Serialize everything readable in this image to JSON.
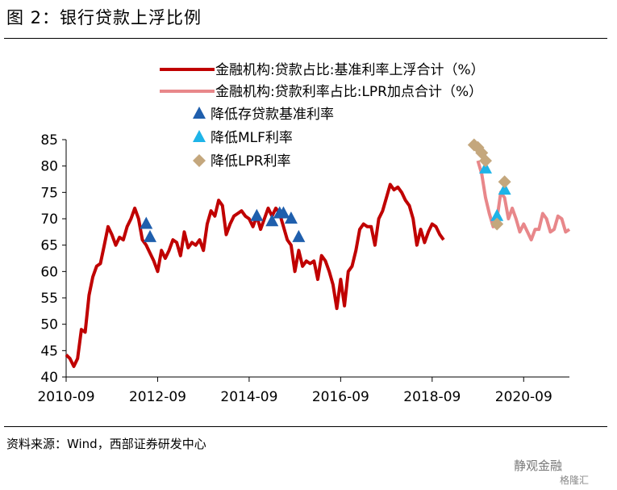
{
  "title": "图 2：银行贷款上浮比例",
  "source": "资料来源：Wind，西部证券研发中心",
  "watermark": "静观金融",
  "watermark_sub": "格隆汇",
  "colors": {
    "series1": "#C00000",
    "series2": "#E8878A",
    "tri_dark": "#1F5FAD",
    "tri_light": "#1EB4E8",
    "diamond": "#C4A77D"
  },
  "chart_data": {
    "type": "line",
    "ylim": [
      40,
      85
    ],
    "yticks": [
      40,
      45,
      50,
      55,
      60,
      65,
      70,
      75,
      80,
      85
    ],
    "xtick_labels": [
      "2010-09",
      "2012-09",
      "2014-09",
      "2016-09",
      "2018-09",
      "2020-09"
    ],
    "xrange": [
      "2010-09",
      "2021-09"
    ],
    "legend": [
      "金融机构:贷款占比:基准利率上浮合计（%）",
      "金融机构:贷款利率占比:LPR加点合计（%）",
      "降低存贷款基准利率",
      "降低MLF利率",
      "降低LPR利率"
    ],
    "series": [
      {
        "name": "金融机构:贷款占比:基准利率上浮合计（%）",
        "x": [
          "2010-09",
          "2010-10",
          "2010-11",
          "2010-12",
          "2011-01",
          "2011-02",
          "2011-03",
          "2011-04",
          "2011-05",
          "2011-06",
          "2011-07",
          "2011-08",
          "2011-09",
          "2011-10",
          "2011-11",
          "2011-12",
          "2012-01",
          "2012-02",
          "2012-03",
          "2012-04",
          "2012-05",
          "2012-06",
          "2012-07",
          "2012-08",
          "2012-09",
          "2012-10",
          "2012-11",
          "2012-12",
          "2013-01",
          "2013-02",
          "2013-03",
          "2013-04",
          "2013-05",
          "2013-06",
          "2013-07",
          "2013-08",
          "2013-09",
          "2013-10",
          "2013-11",
          "2013-12",
          "2014-01",
          "2014-02",
          "2014-03",
          "2014-04",
          "2014-05",
          "2014-06",
          "2014-07",
          "2014-08",
          "2014-09",
          "2014-10",
          "2014-11",
          "2014-12",
          "2015-01",
          "2015-02",
          "2015-03",
          "2015-04",
          "2015-05",
          "2015-06",
          "2015-07",
          "2015-08",
          "2015-09",
          "2015-10",
          "2015-11",
          "2015-12",
          "2016-01",
          "2016-02",
          "2016-03",
          "2016-04",
          "2016-05",
          "2016-06",
          "2016-07",
          "2016-08",
          "2016-09",
          "2016-10",
          "2016-11",
          "2016-12",
          "2017-01",
          "2017-02",
          "2017-03",
          "2017-04",
          "2017-05",
          "2017-06",
          "2017-07",
          "2017-08",
          "2017-09",
          "2017-10",
          "2017-11",
          "2017-12",
          "2018-01",
          "2018-02",
          "2018-03",
          "2018-04",
          "2018-05",
          "2018-06",
          "2018-07",
          "2018-08",
          "2018-09",
          "2018-10",
          "2018-11",
          "2018-12",
          "2019-01",
          "2019-02",
          "2019-03",
          "2019-04",
          "2019-05",
          "2019-06",
          "2019-07"
        ],
        "values": [
          44.2,
          43.5,
          42.0,
          43.5,
          49.0,
          48.5,
          55.5,
          59.0,
          61.0,
          61.5,
          65.0,
          68.5,
          67.0,
          65.0,
          66.5,
          66.0,
          68.5,
          70.0,
          72.0,
          70.0,
          66.0,
          65.0,
          63.5,
          62.0,
          60.0,
          64.0,
          62.5,
          64.0,
          66.0,
          65.5,
          63.0,
          67.5,
          64.5,
          65.5,
          65.0,
          66.0,
          64.0,
          69.0,
          71.5,
          70.5,
          73.5,
          72.5,
          67.0,
          69.0,
          70.5,
          71.0,
          71.5,
          70.5,
          70.0,
          68.5,
          70.5,
          68.0,
          70.0,
          72.0,
          70.5,
          72.0,
          71.0,
          68.5,
          66.0,
          65.0,
          60.0,
          64.0,
          61.0,
          62.0,
          61.5,
          62.0,
          58.5,
          63.0,
          62.0,
          60.0,
          57.5,
          53.0,
          58.5,
          53.5,
          60.0,
          61.0,
          64.0,
          68.0,
          69.0,
          68.5,
          68.5,
          65.0,
          70.0,
          71.5,
          74.0,
          76.5,
          75.5,
          76.0,
          75.0,
          73.5,
          72.5,
          70.0,
          65.0,
          68.0,
          65.5,
          67.5,
          69.0,
          68.5,
          67.0,
          66.0,
          null,
          null,
          null,
          null,
          null,
          null,
          null
        ]
      },
      {
        "name": "金融机构:贷款利率占比:LPR加点合计（%）",
        "x": [
          "2019-09",
          "2019-10",
          "2019-11",
          "2019-12",
          "2020-01",
          "2020-02",
          "2020-03",
          "2020-04",
          "2020-05",
          "2020-06",
          "2020-07",
          "2020-08",
          "2020-09",
          "2020-10",
          "2020-11",
          "2020-12",
          "2021-01",
          "2021-02",
          "2021-03",
          "2021-04",
          "2021-05",
          "2021-06",
          "2021-07",
          "2021-08",
          "2021-09"
        ],
        "values": [
          81.0,
          78.5,
          74.0,
          71.0,
          68.5,
          70.0,
          75.0,
          74.0,
          70.0,
          72.0,
          70.0,
          67.5,
          69.0,
          67.5,
          66.0,
          68.0,
          68.0,
          71.0,
          70.0,
          67.5,
          68.0,
          70.5,
          70.0,
          67.5,
          68.0
        ]
      }
    ],
    "markers": [
      {
        "label": "降低存贷款基准利率",
        "shape": "triangle",
        "x": [
          "2012-06",
          "2012-07",
          "2014-11",
          "2015-03",
          "2015-05",
          "2015-06",
          "2015-08",
          "2015-10"
        ],
        "values": [
          69.0,
          66.5,
          70.5,
          69.5,
          71.0,
          71.0,
          70.0,
          66.5
        ]
      },
      {
        "label": "降低MLF利率",
        "shape": "triangle",
        "x": [
          "2019-11",
          "2020-02",
          "2020-04"
        ],
        "values": [
          79.5,
          70.5,
          75.5
        ]
      },
      {
        "label": "降低LPR利率",
        "shape": "diamond",
        "x": [
          "2019-08",
          "2019-09",
          "2019-10",
          "2019-11",
          "2020-02",
          "2020-04"
        ],
        "values": [
          84.0,
          83.5,
          82.5,
          81.0,
          69.0,
          77.0
        ]
      }
    ]
  }
}
